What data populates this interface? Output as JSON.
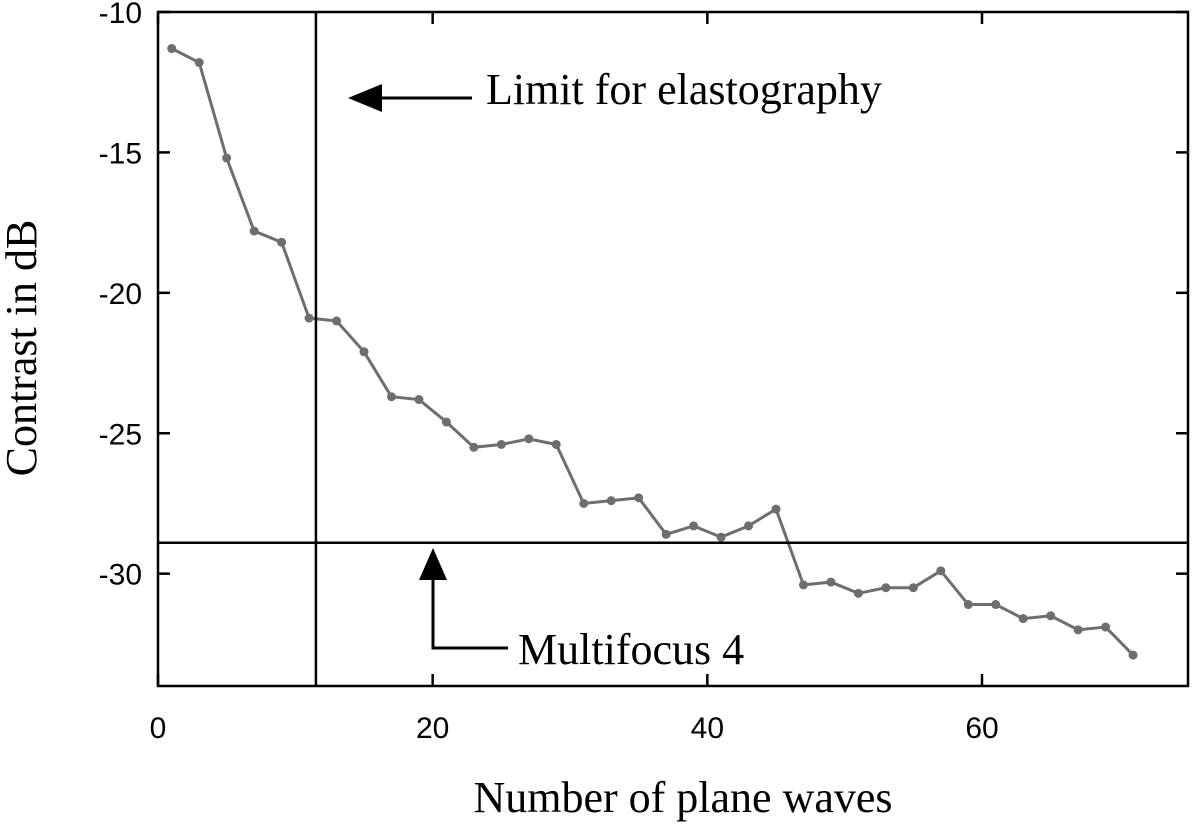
{
  "chart_data": {
    "type": "line",
    "title": "",
    "xlabel": "Number of plane waves",
    "ylabel": "Contrast in dB",
    "xlim": [
      0,
      75
    ],
    "ylim": [
      -34,
      -10
    ],
    "xticks": [
      0,
      20,
      40,
      60
    ],
    "xtick_labels": [
      "0",
      "20",
      "40",
      "60"
    ],
    "yticks": [
      -10,
      -15,
      -20,
      -25,
      -30
    ],
    "ytick_labels": [
      "-10",
      "-15",
      "-20",
      "-25",
      "-30"
    ],
    "grid": false,
    "series": [
      {
        "name": "contrast",
        "color": "#6e6e6e",
        "x": [
          1,
          3,
          5,
          7,
          9,
          11,
          13,
          15,
          17,
          19,
          21,
          23,
          25,
          27,
          29,
          31,
          33,
          35,
          37,
          39,
          41,
          43,
          45,
          47,
          49,
          51,
          53,
          55,
          57,
          59,
          61,
          63,
          65,
          67,
          69,
          71
        ],
        "y": [
          -11.3,
          -11.8,
          -15.2,
          -17.8,
          -18.2,
          -20.9,
          -21.0,
          -22.1,
          -23.7,
          -23.8,
          -24.6,
          -25.5,
          -25.4,
          -25.2,
          -25.4,
          -27.5,
          -27.4,
          -27.3,
          -28.6,
          -28.3,
          -28.7,
          -28.3,
          -27.7,
          -30.4,
          -30.3,
          -30.7,
          -30.5,
          -30.5,
          -29.9,
          -31.1,
          -31.1,
          -31.6,
          -31.5,
          -32.0,
          -31.9,
          -32.9
        ]
      }
    ],
    "reference_lines": {
      "vertical_x": 11.5,
      "horizontal_y": -28.9
    },
    "annotations": [
      {
        "text": "Limit for elastography",
        "arrow": "left"
      },
      {
        "text": "Multifocus 4",
        "arrow": "up"
      }
    ]
  }
}
